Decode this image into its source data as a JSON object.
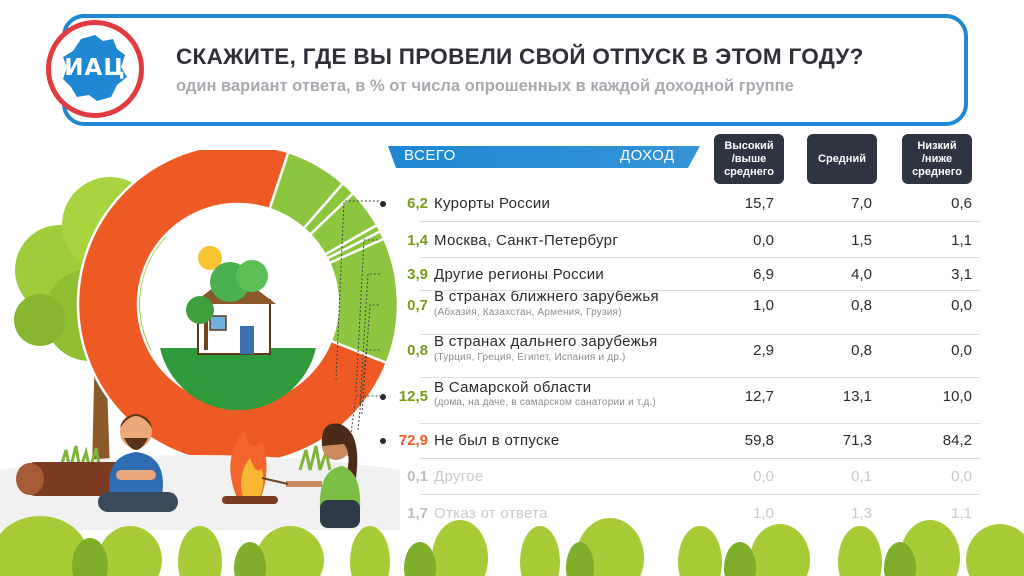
{
  "header": {
    "logo_text": "ИАЦ",
    "title": "СКАЖИТЕ, ГДЕ ВЫ ПРОВЕЛИ СВОЙ ОТПУСК В ЭТОМ ГОДУ?",
    "subtitle": "один вариант ответа, в % от числа опрошенных в каждой доходной группе"
  },
  "table": {
    "total_label": "ВСЕГО",
    "income_label": "ДОХОД",
    "columns": [
      "Высокий\n/выше\nсреднего",
      "Средний",
      "Низкий\n/ниже\nсреднего"
    ]
  },
  "colors": {
    "accent_blue": "#1e88d2",
    "orange": "#ee5a24",
    "green": "#8cc63f",
    "olive": "#7a9a1a",
    "dark": "#2e3442",
    "logo_red": "#e23a3f"
  },
  "chart_data": {
    "type": "table",
    "title": "СКАЖИТЕ, ГДЕ ВЫ ПРОВЕЛИ СВОЙ ОТПУСК В ЭТОМ ГОДУ?",
    "subtitle": "один вариант ответа, в % от числа опрошенных в каждой доходной группе",
    "headers": [
      "ВСЕГО",
      "Высокий /выше среднего",
      "Средний",
      "Низкий /ниже среднего"
    ],
    "rows": [
      {
        "label": "Курорты России",
        "note": "",
        "total": "6,2",
        "high": "15,7",
        "mid": "7,0",
        "low": "0,6"
      },
      {
        "label": "Москва, Санкт-Петербург",
        "note": "",
        "total": "1,4",
        "high": "0,0",
        "mid": "1,5",
        "low": "1,1"
      },
      {
        "label": "Другие регионы России",
        "note": "",
        "total": "3,9",
        "high": "6,9",
        "mid": "4,0",
        "low": "3,1"
      },
      {
        "label": "В странах ближнего зарубежья",
        "note": "(Абхазия, Казахстан, Армения, Грузия)",
        "total": "0,7",
        "high": "1,0",
        "mid": "0,8",
        "low": "0,0"
      },
      {
        "label": "В странах дальнего зарубежья",
        "note": "(Турция, Греция, Египет, Испания и др.)",
        "total": "0,8",
        "high": "2,9",
        "mid": "0,8",
        "low": "0,0"
      },
      {
        "label": "В Самарской области",
        "note": "(дома, на даче, в самарском санатории и т.д.)",
        "total": "12,5",
        "high": "12,7",
        "mid": "13,1",
        "low": "10,0"
      },
      {
        "label": "Не был в отпуске",
        "note": "",
        "total": "72,9",
        "high": "59,8",
        "mid": "71,3",
        "low": "84,2"
      },
      {
        "label": "Другое",
        "note": "",
        "total": "0,1",
        "high": "0,0",
        "mid": "0,1",
        "low": "0,0"
      },
      {
        "label": "Отказ от ответа",
        "note": "",
        "total": "1,7",
        "high": "1,0",
        "mid": "1,3",
        "low": "1,1"
      }
    ],
    "donut": {
      "type": "pie",
      "segments": [
        {
          "label": "Не был в отпуске",
          "value": 72.9,
          "color": "#ee5a24"
        },
        {
          "label": "Курорты России",
          "value": 6.2,
          "color": "#8cc63f"
        },
        {
          "label": "Москва, Санкт-Петербург",
          "value": 1.4,
          "color": "#8cc63f"
        },
        {
          "label": "Другие регионы России",
          "value": 3.9,
          "color": "#8cc63f"
        },
        {
          "label": "В странах ближнего зарубежья",
          "value": 0.7,
          "color": "#8cc63f"
        },
        {
          "label": "В странах дальнего зарубежья",
          "value": 0.8,
          "color": "#8cc63f"
        },
        {
          "label": "В Самарской области",
          "value": 12.5,
          "color": "#8cc63f"
        }
      ]
    }
  }
}
